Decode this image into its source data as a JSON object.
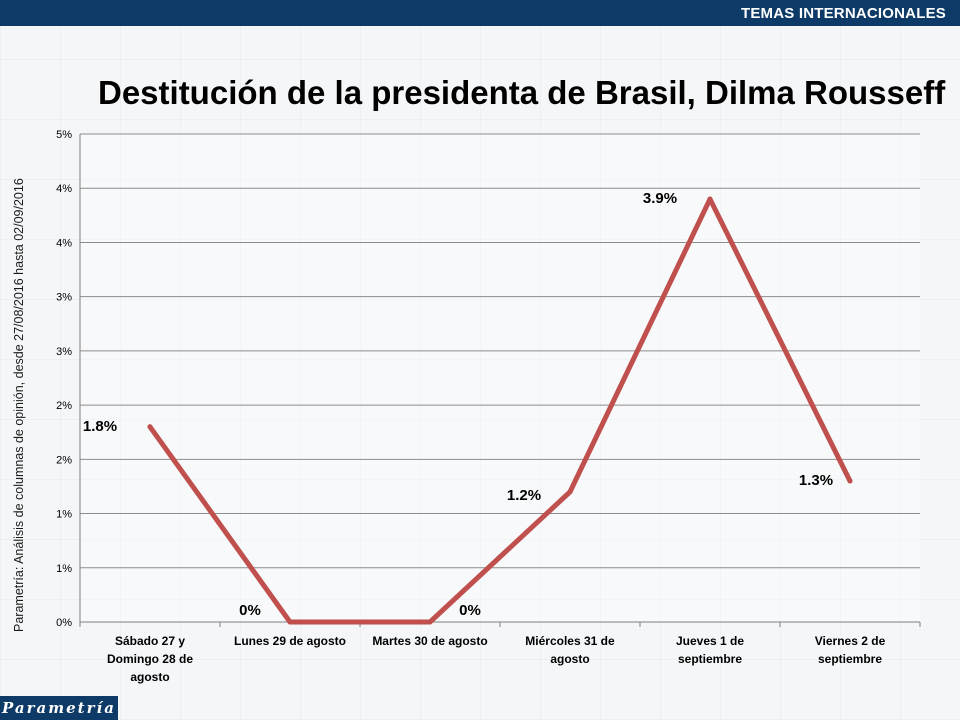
{
  "header": {
    "section": "TEMAS INTERNACIONALES"
  },
  "source_note": "Parametría: Análisis de columnas de opinión, desde 27/08/2016 hasta  02/09/2016",
  "logo_text": "Parametría",
  "chart_data": {
    "type": "line",
    "title": "Destitución de la presidenta de Brasil, Dilma Rousseff",
    "categories": [
      [
        "Sábado 27 y",
        "Domingo 28 de",
        "agosto"
      ],
      [
        "Lunes 29 de agosto"
      ],
      [
        "Martes 30 de agosto"
      ],
      [
        "Miércoles 31 de",
        "agosto"
      ],
      [
        "Jueves 1 de",
        "septiembre"
      ],
      [
        "Viernes 2 de",
        "septiembre"
      ]
    ],
    "series": [
      {
        "values": [
          1.8,
          0,
          0,
          1.2,
          3.9,
          1.3
        ],
        "data_labels": [
          "1.8%",
          "0%",
          "0%",
          "1.2%",
          "3.9%",
          "1.3%"
        ],
        "color": "#c0504d"
      }
    ],
    "ylim": [
      0,
      4.5
    ],
    "yticks": [
      0,
      0.5,
      1,
      1.5,
      2,
      2.5,
      3,
      3.5,
      4,
      4.5
    ],
    "ytick_labels": [
      "0%",
      "1%",
      "1%",
      "2%",
      "2%",
      "3%",
      "3%",
      "4%",
      "4%",
      "5%"
    ],
    "grid": true
  }
}
